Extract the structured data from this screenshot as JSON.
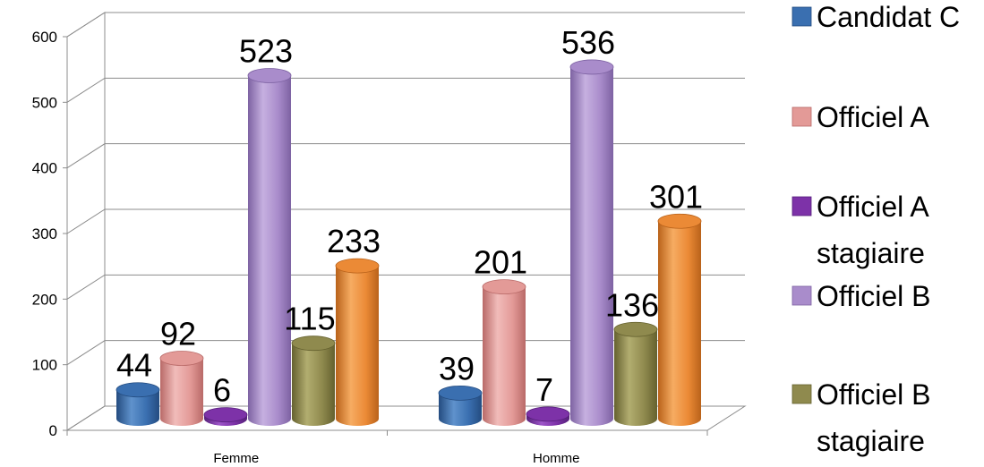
{
  "chart_data": {
    "type": "bar",
    "categories": [
      "Femme",
      "Homme"
    ],
    "ylim": [
      0,
      600
    ],
    "yticks": [
      0,
      100,
      200,
      300,
      400,
      500,
      600
    ],
    "grid": true,
    "legend_position": "right",
    "series": [
      {
        "name": "Candidat C",
        "values": [
          44,
          39
        ],
        "color": "#3A6FB0",
        "dark": "#244C80",
        "light": "#5F92CC"
      },
      {
        "name": "Officiel A",
        "values": [
          92,
          201
        ],
        "color": "#E39A97",
        "dark": "#B96A68",
        "light": "#F1BCBA"
      },
      {
        "name": "Officiel A stagiaire",
        "values": [
          6,
          7
        ],
        "color": "#7D32A8",
        "dark": "#56207A",
        "light": "#9D55C8"
      },
      {
        "name": "Officiel B",
        "values": [
          523,
          536
        ],
        "color": "#A98CCB",
        "dark": "#7D62A2",
        "light": "#C6B0E0"
      },
      {
        "name": "Officiel B stagiaire",
        "values": [
          115,
          136
        ],
        "color": "#8F8A4E",
        "dark": "#65612F",
        "light": "#B2AD70"
      },
      {
        "name": "",
        "values": [
          233,
          301
        ],
        "color": "#EB8A36",
        "dark": "#B9621A",
        "light": "#F6AC62"
      }
    ]
  }
}
